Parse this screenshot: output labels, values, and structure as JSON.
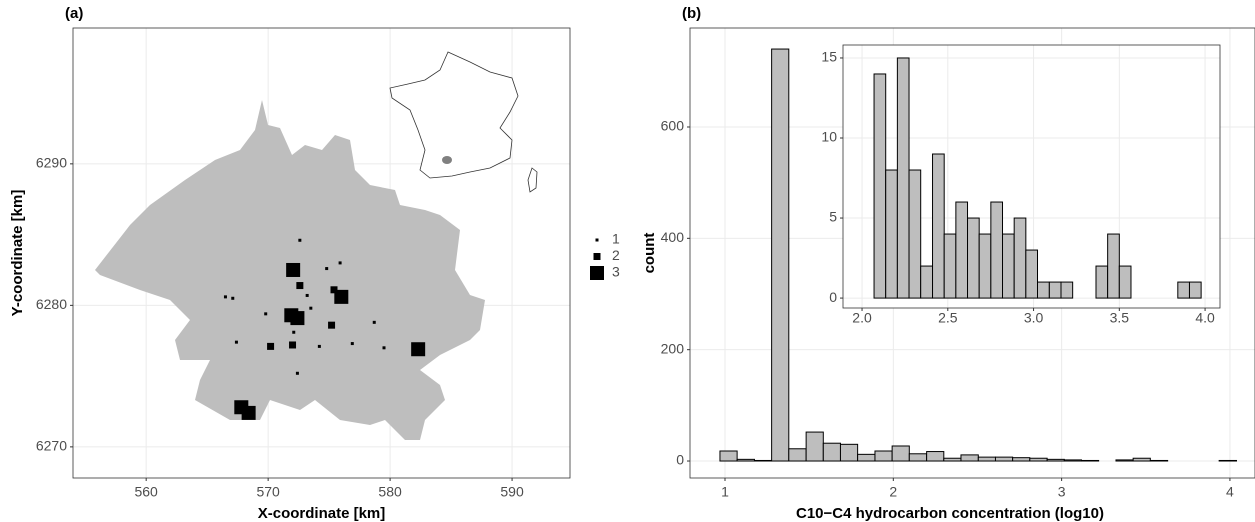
{
  "chart_data": [
    {
      "type": "scatter",
      "panel_label": "(a)",
      "x_label": "X-coordinate [km]",
      "y_label": "Y-coordinate [km]",
      "x": [
        572.05,
        571.9,
        572.4,
        576.0,
        582.3,
        567.8,
        568.4,
        575.4,
        572.6,
        575.2,
        570.2,
        572.0,
        572.6,
        574.8,
        575.9,
        573.2,
        566.5,
        567.1,
        569.8,
        573.5,
        572.1,
        567.4,
        574.2,
        578.7,
        576.9,
        579.5,
        572.4
      ],
      "y": [
        6282.5,
        6279.3,
        6279.1,
        6280.6,
        6276.9,
        6272.8,
        6272.4,
        6281.1,
        6281.4,
        6278.6,
        6277.1,
        6277.2,
        6284.6,
        6282.6,
        6283.0,
        6280.7,
        6280.6,
        6280.5,
        6279.4,
        6279.8,
        6278.1,
        6277.4,
        6277.1,
        6278.8,
        6277.3,
        6277.0,
        6275.2
      ],
      "sizes": [
        3,
        3,
        3,
        3,
        3,
        3,
        3,
        2,
        2,
        2,
        2,
        2,
        1,
        1,
        1,
        1,
        1,
        1,
        1,
        1,
        1,
        1,
        1,
        1,
        1,
        1,
        1
      ],
      "size_legend": [
        1,
        2,
        3
      ],
      "color": "#000000",
      "region_color": "#bebebe",
      "xlim": [
        554.0,
        594.75
      ],
      "ylim": [
        6267.8,
        6299.6
      ],
      "xticks": [
        560,
        570,
        580,
        590
      ],
      "yticks": [
        6270,
        6280,
        6290
      ],
      "grid": true
    },
    {
      "type": "histogram",
      "panel_label": "(b)",
      "x_label": "C10−C4 hydrocarbon concentration (log10)",
      "y_label": "count",
      "bins": [
        0.97,
        1.072,
        1.175,
        1.277,
        1.379,
        1.482,
        1.584,
        1.686,
        1.788,
        1.891,
        1.993,
        2.095,
        2.198,
        2.3,
        2.402,
        2.505,
        2.607,
        2.709,
        2.811,
        2.914,
        3.016,
        3.118,
        3.22,
        3.323,
        3.425,
        3.527,
        3.63,
        3.732,
        3.834,
        3.936,
        4.039
      ],
      "values": [
        18,
        3,
        1,
        740,
        22,
        52,
        32,
        30,
        12,
        18,
        27,
        13,
        17,
        5,
        11,
        7,
        7,
        6,
        5,
        3,
        2,
        1,
        0,
        2,
        5,
        1,
        0,
        0,
        0,
        1
      ],
      "color": "#bebebe",
      "xlim": [
        0.792,
        4.149
      ],
      "ylim": [
        -30.5,
        777.8
      ],
      "xticks": [
        1,
        2,
        3,
        4
      ],
      "yticks": [
        0,
        200,
        400,
        600
      ],
      "grid": true
    },
    {
      "type": "histogram",
      "inset": true,
      "bins": [
        2.07,
        2.138,
        2.206,
        2.274,
        2.342,
        2.411,
        2.479,
        2.547,
        2.615,
        2.683,
        2.751,
        2.819,
        2.887,
        2.955,
        3.023,
        3.092,
        3.16,
        3.228,
        3.296,
        3.364,
        3.432,
        3.5,
        3.568,
        3.636,
        3.704,
        3.773,
        3.841,
        3.909,
        3.977
      ],
      "values": [
        14,
        8,
        15,
        8,
        2,
        9,
        4,
        6,
        5,
        4,
        6,
        4,
        5,
        3,
        1,
        1,
        1,
        0,
        0,
        2,
        4,
        2,
        0,
        0,
        0,
        0,
        1,
        1
      ],
      "color": "#bebebe",
      "xlim": [
        1.889,
        4.087
      ],
      "ylim": [
        -0.62,
        15.81
      ],
      "xticks": [
        {
          "value": 2,
          "label": "2.0"
        },
        2.5,
        {
          "value": 3,
          "label": "3.0"
        },
        3.5,
        {
          "value": 4,
          "label": "4.0"
        }
      ],
      "yticks": [
        0,
        5,
        10,
        15
      ],
      "grid": true
    }
  ]
}
